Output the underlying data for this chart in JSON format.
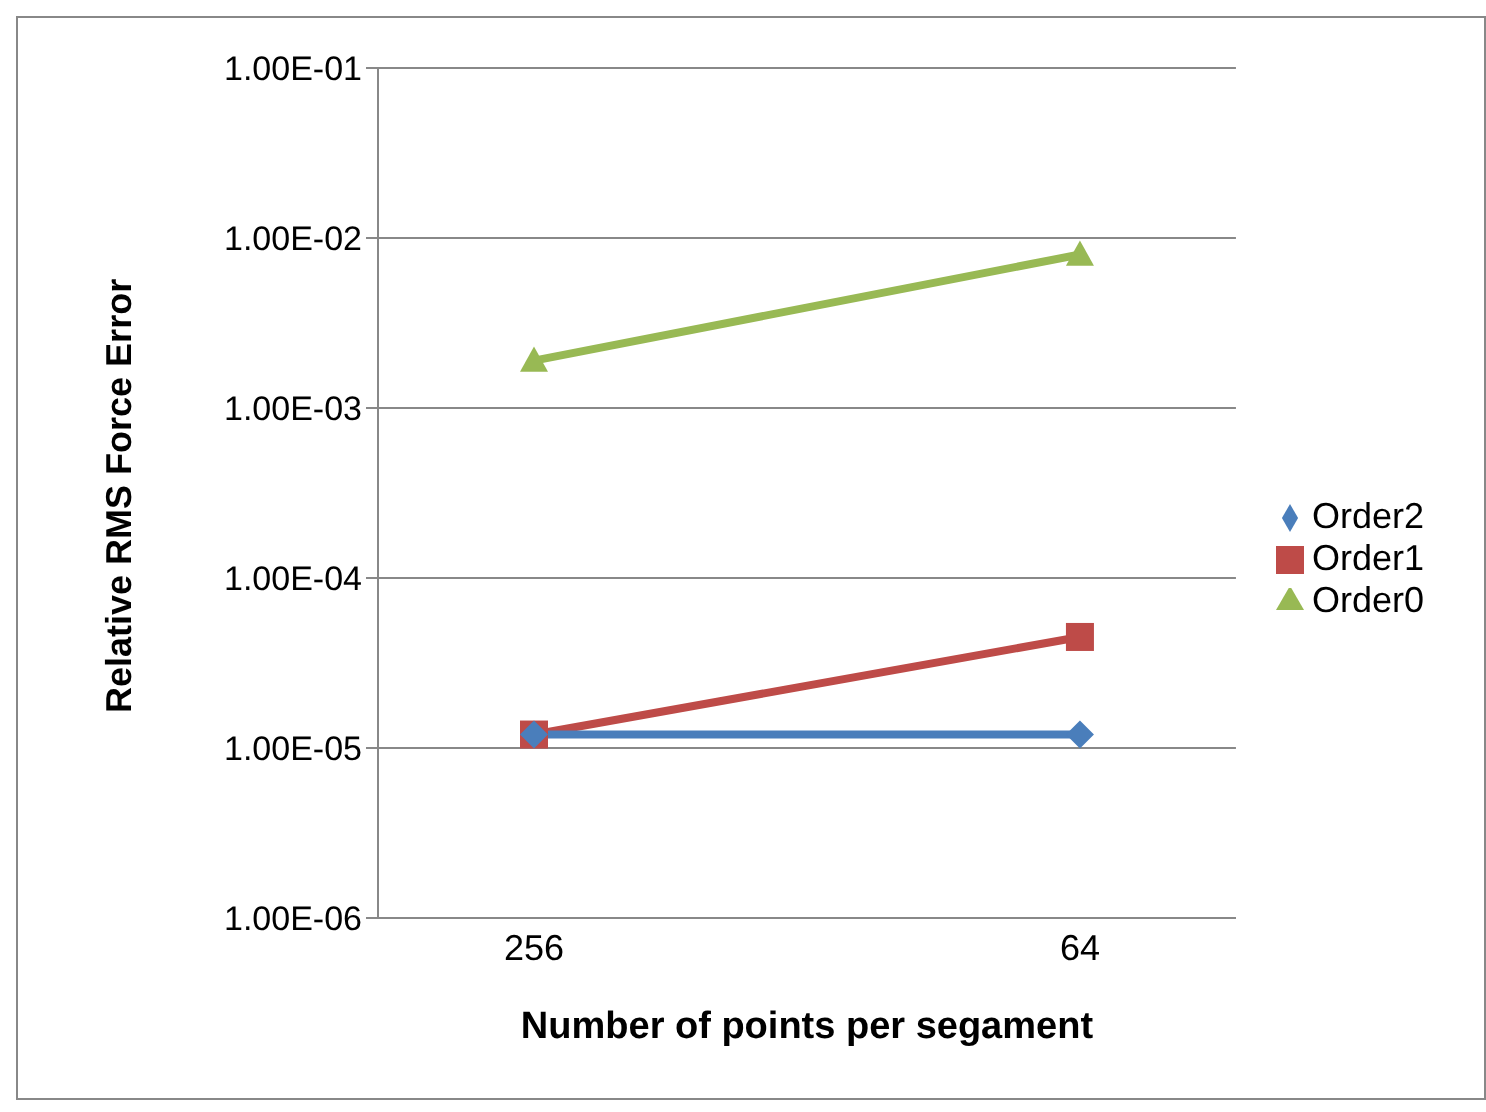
{
  "chart_data": {
    "type": "line",
    "xlabel": "Number of points per segament",
    "ylabel": "Relative RMS Force Error",
    "categories": [
      "256",
      "64"
    ],
    "series": [
      {
        "name": "Order2",
        "color": "#4a7ebb",
        "marker": "diamond",
        "values": [
          1.2e-05,
          1.2e-05
        ]
      },
      {
        "name": "Order1",
        "color": "#be4b48",
        "marker": "square",
        "values": [
          1.2e-05,
          4.5e-05
        ]
      },
      {
        "name": "Order0",
        "color": "#98b954",
        "marker": "triangle",
        "values": [
          0.0019,
          0.008
        ]
      }
    ],
    "log": "y",
    "ylim": [
      1e-06,
      0.1
    ],
    "yticks": [
      {
        "value": 1e-06,
        "label": "1.00E-06"
      },
      {
        "value": 1e-05,
        "label": "1.00E-05"
      },
      {
        "value": 0.0001,
        "label": "1.00E-04"
      },
      {
        "value": 0.001,
        "label": "1.00E-03"
      },
      {
        "value": 0.01,
        "label": "1.00E-02"
      },
      {
        "value": 0.1,
        "label": "1.00E-01"
      }
    ],
    "grid": "y",
    "legend": "right"
  }
}
